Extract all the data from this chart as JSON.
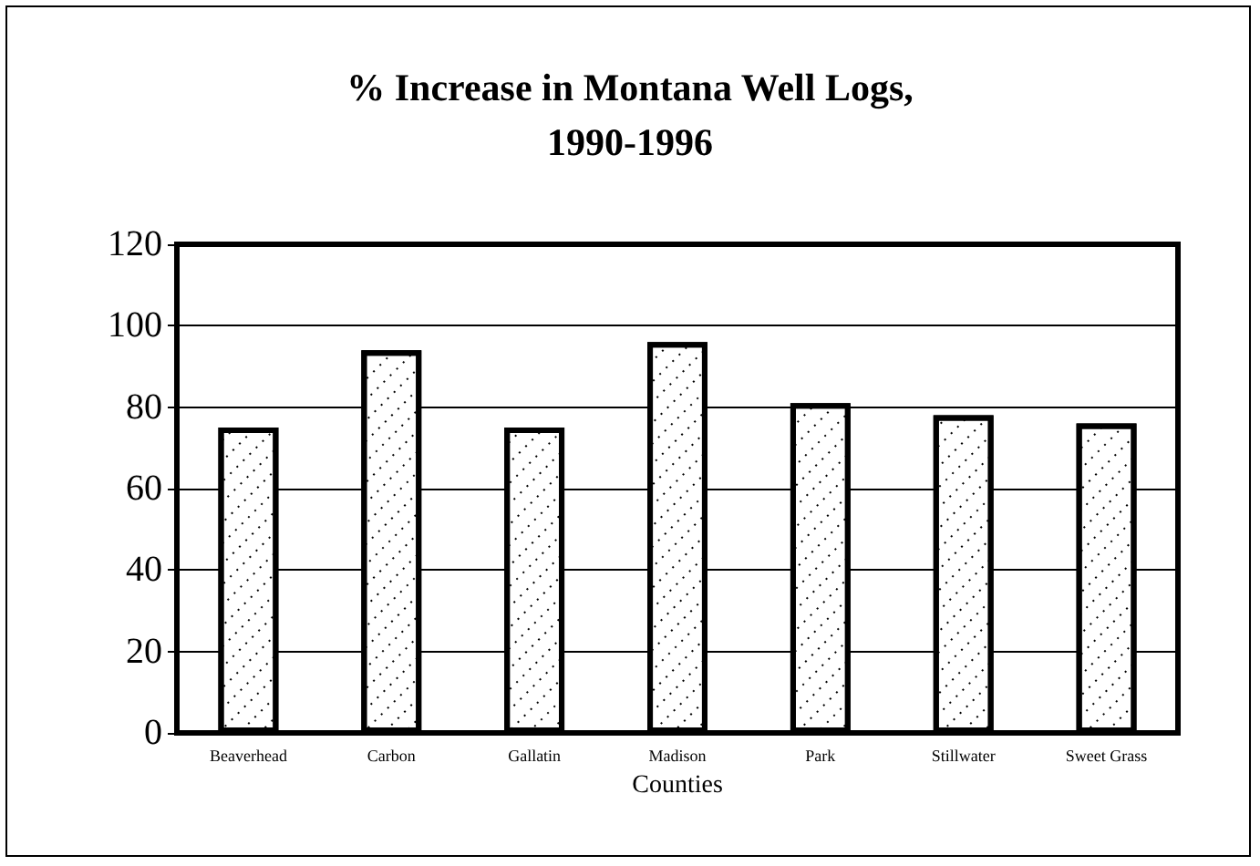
{
  "chart_data": {
    "type": "bar",
    "title": "% Increase in Montana Well Logs,\n1990-1996",
    "xlabel": "Counties",
    "categories": [
      "Beaverhead",
      "Carbon",
      "Gallatin",
      "Madison",
      "Park",
      "Stillwater",
      "Sweet Grass"
    ],
    "values": [
      75,
      94,
      75,
      96,
      81,
      78,
      76
    ],
    "color": "#ffffff",
    "ylim": [
      0,
      120
    ],
    "yticks": [
      0,
      20,
      40,
      60,
      80,
      100,
      120
    ],
    "grid": "y"
  }
}
